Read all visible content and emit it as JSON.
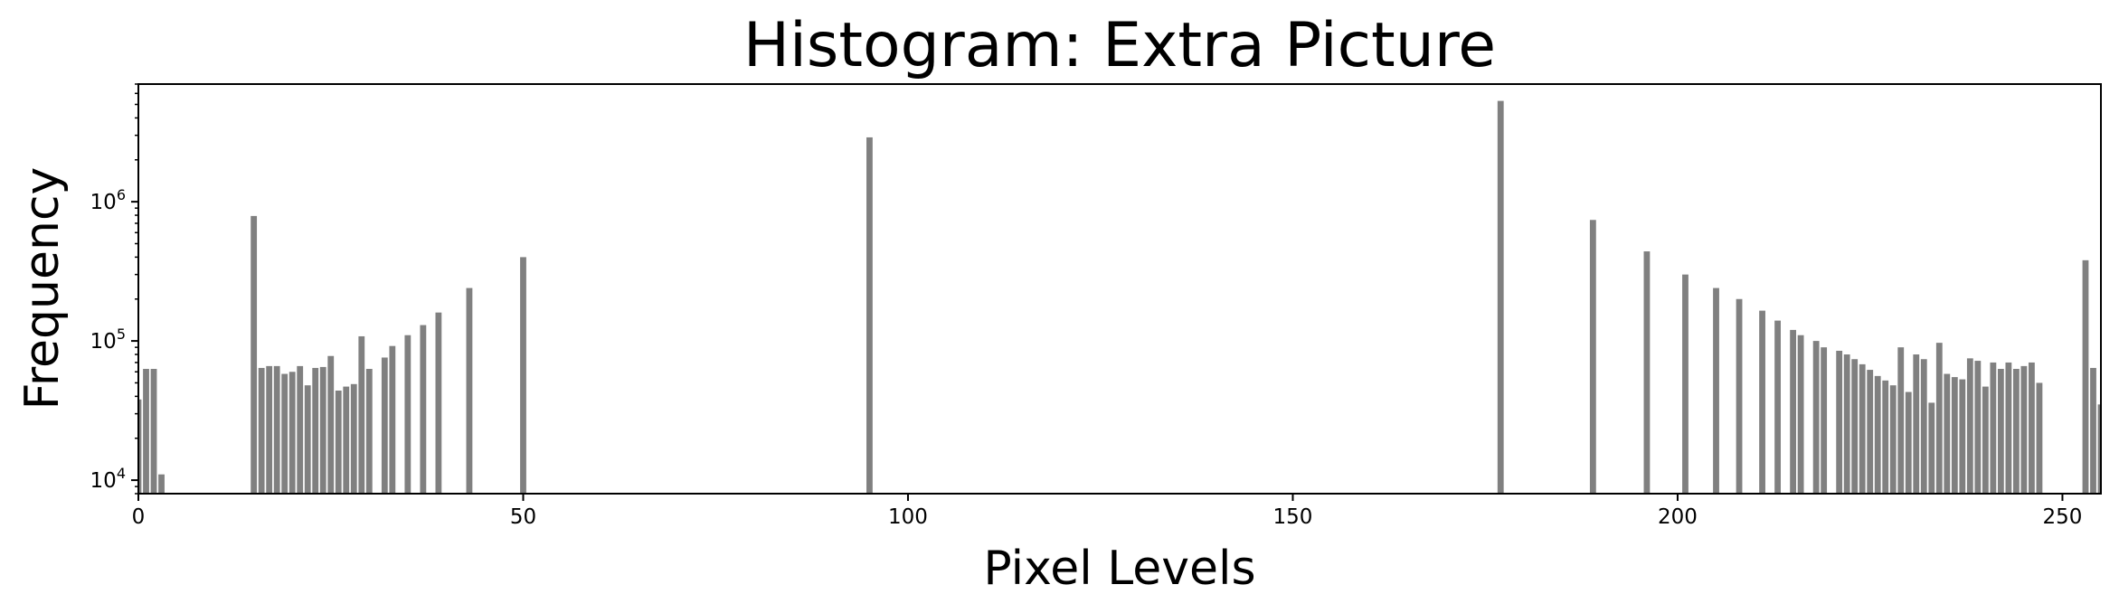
{
  "chart_data": {
    "type": "bar",
    "title": "Histogram: Extra Picture",
    "xlabel": "Pixel Levels",
    "ylabel": "Frequency",
    "xlim": [
      0,
      255
    ],
    "ylim": [
      8000,
      7000000
    ],
    "yscale": "log",
    "bar_color": "#808080",
    "xticks": [
      0,
      50,
      100,
      150,
      200,
      250
    ],
    "yticks": [
      {
        "base": "10",
        "exp": "4",
        "value": 10000
      },
      {
        "base": "10",
        "exp": "5",
        "value": 100000
      },
      {
        "base": "10",
        "exp": "6",
        "value": 1000000
      }
    ],
    "x": [
      0,
      1,
      2,
      3,
      15,
      16,
      17,
      18,
      19,
      20,
      21,
      22,
      23,
      24,
      25,
      26,
      27,
      28,
      29,
      30,
      32,
      33,
      35,
      37,
      39,
      43,
      50,
      95,
      177,
      189,
      196,
      201,
      205,
      208,
      211,
      213,
      215,
      216,
      218,
      219,
      221,
      222,
      223,
      224,
      225,
      226,
      227,
      228,
      229,
      230,
      231,
      232,
      233,
      234,
      235,
      236,
      237,
      238,
      239,
      240,
      241,
      242,
      243,
      244,
      245,
      246,
      247,
      253,
      254,
      255
    ],
    "values": [
      38000,
      63000,
      63000,
      11000,
      790000,
      64000,
      66000,
      66000,
      58000,
      60000,
      66000,
      48000,
      64000,
      65000,
      78000,
      44000,
      47000,
      49000,
      108000,
      63000,
      76000,
      92000,
      110000,
      130000,
      160000,
      240000,
      400000,
      2900000,
      5300000,
      740000,
      440000,
      300000,
      240000,
      200000,
      165000,
      140000,
      120000,
      110000,
      100000,
      90000,
      85000,
      80000,
      74000,
      68000,
      62000,
      56000,
      52000,
      48000,
      90000,
      43000,
      80000,
      74000,
      36000,
      97000,
      58000,
      55000,
      53000,
      75000,
      72000,
      47000,
      70000,
      63000,
      70000,
      63000,
      66000,
      70000,
      50000,
      380000,
      64000,
      35000
    ]
  }
}
